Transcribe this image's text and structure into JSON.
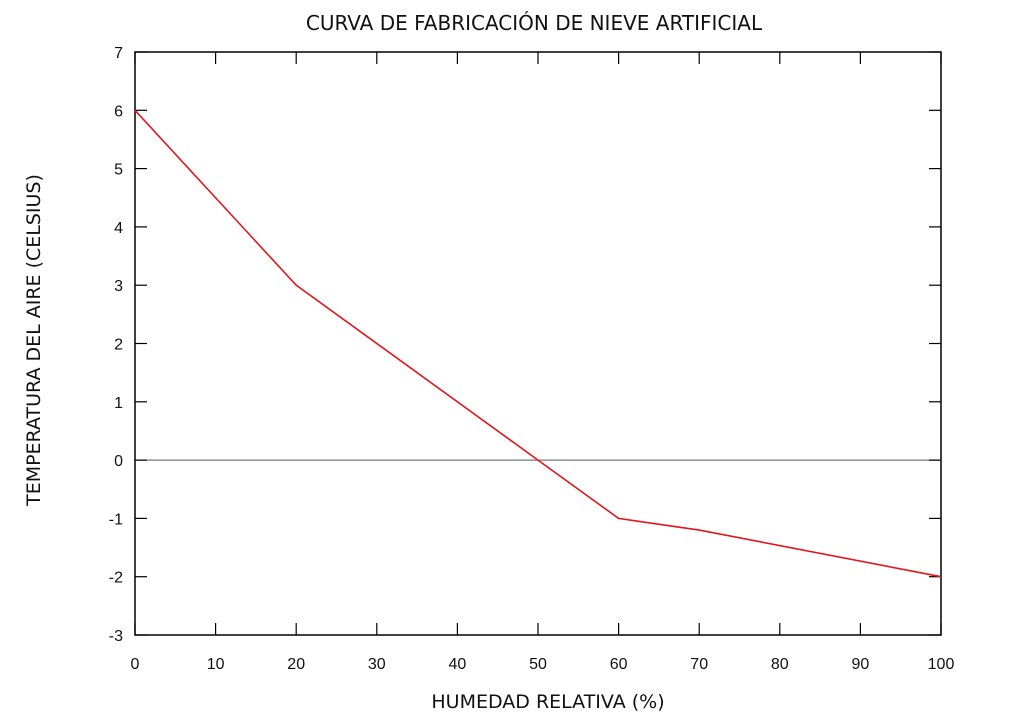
{
  "chart_data": {
    "type": "line",
    "title": "CURVA DE FABRICACIÓN DE NIEVE ARTIFICIAL",
    "xlabel": "HUMEDAD RELATIVA (%)",
    "ylabel": "TEMPERATURA DEL AIRE (CELSIUS)",
    "xlim": [
      0,
      100
    ],
    "ylim": [
      -3,
      7
    ],
    "xticks": [
      0,
      10,
      20,
      30,
      40,
      50,
      60,
      70,
      80,
      90,
      100
    ],
    "yticks": [
      -3,
      -2,
      -1,
      0,
      1,
      2,
      3,
      4,
      5,
      6,
      7
    ],
    "grid": false,
    "reference_line_y": 0,
    "series": [
      {
        "color": "#e3141b",
        "x": [
          0,
          20,
          50,
          60,
          70,
          100
        ],
        "y": [
          6,
          3,
          0,
          -1,
          -1.2,
          -2
        ]
      }
    ]
  }
}
